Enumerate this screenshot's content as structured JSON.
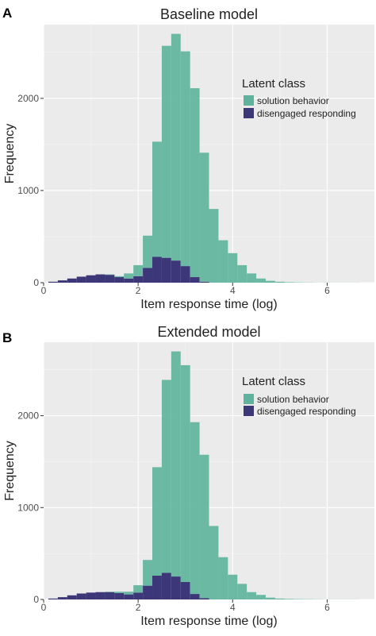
{
  "colors": {
    "solution": "#5fb39c",
    "disengaged": "#3c3779",
    "panel_bg": "#ebebeb",
    "grid_major": "#ffffff",
    "grid_minor": "#f5f5f5",
    "text": "#222222",
    "tick_text": "#4d4d4d"
  },
  "chart_data": [
    {
      "panel_letter": "A",
      "type": "bar",
      "subtype": "stacked histogram",
      "title": "Baseline model",
      "xlabel": "Item response time (log)",
      "ylabel": "Frequency",
      "xlim": [
        0,
        7
      ],
      "ylim": [
        0,
        2800
      ],
      "xticks": [
        "0",
        "2",
        "4",
        "6"
      ],
      "yticks": [
        "0",
        "1000",
        "2000"
      ],
      "grid": true,
      "legend": {
        "title": "Latent class",
        "position": "top-right",
        "entries": [
          "solution behavior",
          "disengaged responding"
        ]
      },
      "bin_width": 0.2,
      "x": [
        0.2,
        0.4,
        0.6,
        0.8,
        1.0,
        1.2,
        1.4,
        1.6,
        1.8,
        2.0,
        2.2,
        2.4,
        2.6,
        2.8,
        3.0,
        3.2,
        3.4,
        3.6,
        3.8,
        4.0,
        4.2,
        4.4,
        4.6,
        4.8,
        5.0,
        5.2,
        5.4,
        5.6,
        5.8,
        6.0,
        6.2,
        6.4,
        6.6
      ],
      "series": [
        {
          "name": "disengaged responding",
          "values": [
            10,
            25,
            45,
            65,
            80,
            90,
            85,
            60,
            45,
            70,
            160,
            280,
            270,
            240,
            180,
            60,
            10,
            0,
            0,
            0,
            0,
            0,
            0,
            0,
            0,
            0,
            0,
            0,
            0,
            0,
            0,
            0,
            0
          ]
        },
        {
          "name": "solution behavior",
          "values": [
            0,
            0,
            0,
            0,
            0,
            0,
            5,
            10,
            55,
            120,
            350,
            1250,
            2300,
            2460,
            2330,
            2050,
            1400,
            800,
            460,
            320,
            190,
            100,
            45,
            20,
            10,
            5,
            3,
            2,
            1,
            1,
            1,
            1,
            1
          ]
        }
      ]
    },
    {
      "panel_letter": "B",
      "type": "bar",
      "subtype": "stacked histogram",
      "title": "Extended model",
      "xlabel": "Item response time (log)",
      "ylabel": "Frequency",
      "xlim": [
        0,
        7
      ],
      "ylim": [
        0,
        2800
      ],
      "xticks": [
        "0",
        "2",
        "4",
        "6"
      ],
      "yticks": [
        "0",
        "1000",
        "2000"
      ],
      "grid": true,
      "legend": {
        "title": "Latent class",
        "position": "top-right",
        "entries": [
          "solution behavior",
          "disengaged responding"
        ]
      },
      "bin_width": 0.2,
      "x": [
        0.2,
        0.4,
        0.6,
        0.8,
        1.0,
        1.2,
        1.4,
        1.6,
        1.8,
        2.0,
        2.2,
        2.4,
        2.6,
        2.8,
        3.0,
        3.2,
        3.4,
        3.6,
        3.8,
        4.0,
        4.2,
        4.4,
        4.6,
        4.8,
        5.0,
        5.2,
        5.4,
        5.6,
        5.8,
        6.0,
        6.2,
        6.4,
        6.6
      ],
      "series": [
        {
          "name": "disengaged responding",
          "values": [
            10,
            25,
            45,
            65,
            75,
            80,
            80,
            70,
            55,
            75,
            150,
            260,
            290,
            250,
            190,
            60,
            15,
            0,
            0,
            0,
            0,
            0,
            0,
            0,
            0,
            0,
            0,
            0,
            0,
            0,
            0,
            0,
            0
          ]
        },
        {
          "name": "solution behavior",
          "values": [
            0,
            0,
            0,
            0,
            0,
            0,
            5,
            15,
            30,
            80,
            280,
            1180,
            2100,
            2450,
            2360,
            1870,
            1560,
            800,
            460,
            270,
            170,
            80,
            50,
            20,
            10,
            6,
            4,
            3,
            2,
            1,
            1,
            1,
            1
          ]
        }
      ]
    }
  ]
}
